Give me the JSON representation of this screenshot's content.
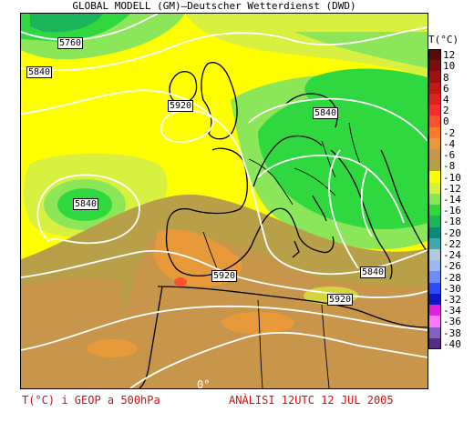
{
  "header": {
    "title": "GLOBAL MODELL (GM)–Deutscher Wetterdienst (DWD)"
  },
  "legend": {
    "title": "T(°C)",
    "entries": [
      {
        "label": "12",
        "color": "#5a0a0a"
      },
      {
        "label": "10",
        "color": "#7a0e0e"
      },
      {
        "label": "8",
        "color": "#9a1212"
      },
      {
        "label": "6",
        "color": "#c01818"
      },
      {
        "label": "4",
        "color": "#e02020"
      },
      {
        "label": "2",
        "color": "#ff2a2a"
      },
      {
        "label": "0",
        "color": "#ff5030"
      },
      {
        "label": "-2",
        "color": "#ff7a28"
      },
      {
        "label": "-4",
        "color": "#e89a3a"
      },
      {
        "label": "-6",
        "color": "#c8964a"
      },
      {
        "label": "-8",
        "color": "#b8a048"
      },
      {
        "label": "-10",
        "color": "#ffff00"
      },
      {
        "label": "-12",
        "color": "#d8f040"
      },
      {
        "label": "-14",
        "color": "#8ce65a"
      },
      {
        "label": "-16",
        "color": "#30d840"
      },
      {
        "label": "-18",
        "color": "#1ab45a"
      },
      {
        "label": "-20",
        "color": "#0a8c78"
      },
      {
        "label": "-22",
        "color": "#40a8b0"
      },
      {
        "label": "-24",
        "color": "#b4c8dc"
      },
      {
        "label": "-26",
        "color": "#a0b8f0"
      },
      {
        "label": "-28",
        "color": "#6c8cff"
      },
      {
        "label": "-30",
        "color": "#2a4cff"
      },
      {
        "label": "-32",
        "color": "#1414c8"
      },
      {
        "label": "-34",
        "color": "#e020e0"
      },
      {
        "label": "-36",
        "color": "#ff78ff"
      },
      {
        "label": "-38",
        "color": "#8060c0"
      },
      {
        "label": "-40",
        "color": "#582a82"
      }
    ]
  },
  "contour_labels": [
    {
      "text": "5760"
    },
    {
      "text": "5840"
    },
    {
      "text": "5920"
    },
    {
      "text": "5840"
    },
    {
      "text": "5840"
    },
    {
      "text": "5920"
    },
    {
      "text": "5840"
    },
    {
      "text": "5920"
    }
  ],
  "map": {
    "zero_label": "0°",
    "colors": {
      "ocean_yellow": "#ffff00",
      "light_green": "#d8f040",
      "mid_green": "#8ce65a",
      "bright_green": "#30d840",
      "olive": "#b8a048",
      "tan": "#c8964a",
      "orange": "#e89a3a"
    }
  },
  "footer": {
    "left": "T(°C) i GEOP a 500hPa",
    "right": "ANÀLISI 12UTC 12 JUL 2005"
  }
}
